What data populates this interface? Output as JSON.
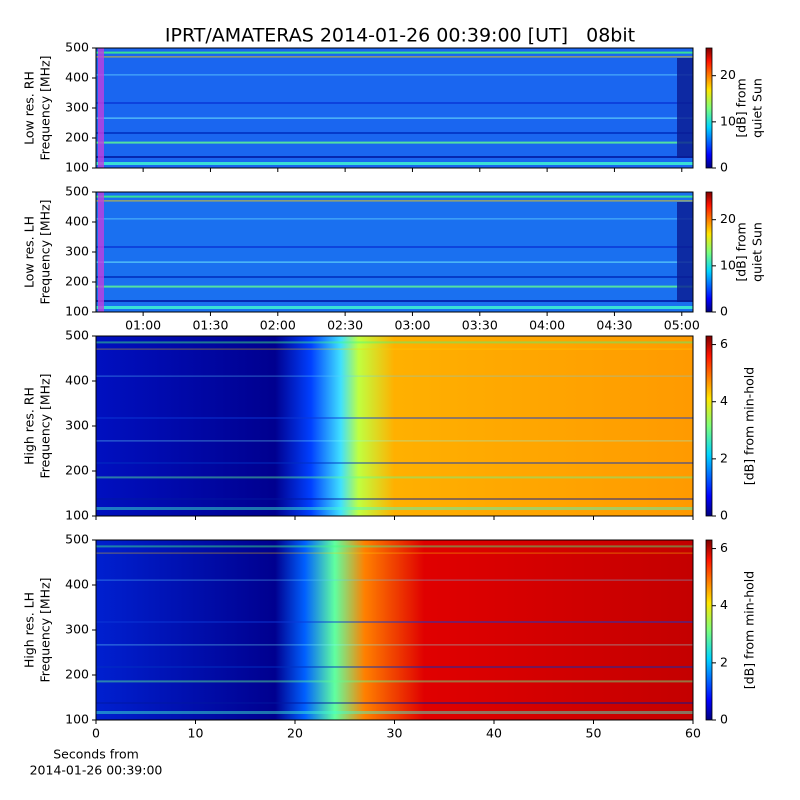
{
  "chart_data": [
    {
      "type": "spectrogram",
      "title": "IPRT/AMATERAS 2014-01-26 00:39:00 [UT]   08bit",
      "ylabel": [
        "Low res. RH",
        "Frequency [MHz]"
      ],
      "xlim": [
        39,
        305
      ],
      "ylim": [
        100,
        500
      ],
      "yticks": [
        100,
        200,
        300,
        400,
        500
      ],
      "clim": [
        0,
        26
      ],
      "cticks": [
        0,
        10,
        20
      ],
      "clabel": [
        "[dB] from",
        "quiet Sun"
      ]
    },
    {
      "type": "spectrogram",
      "ylabel": [
        "Low res. LH",
        "Frequency [MHz]"
      ],
      "xlim": [
        39,
        305
      ],
      "xticks": [
        {
          "value": 60,
          "label": "01:00"
        },
        {
          "value": 90,
          "label": "01:30"
        },
        {
          "value": 120,
          "label": "02:00"
        },
        {
          "value": 150,
          "label": "02:30"
        },
        {
          "value": 180,
          "label": "03:00"
        },
        {
          "value": 210,
          "label": "03:30"
        },
        {
          "value": 240,
          "label": "04:00"
        },
        {
          "value": 270,
          "label": "04:30"
        },
        {
          "value": 300,
          "label": "05:00"
        }
      ],
      "ylim": [
        100,
        500
      ],
      "yticks": [
        100,
        200,
        300,
        400,
        500
      ],
      "clim": [
        0,
        26
      ],
      "cticks": [
        0,
        10,
        20
      ],
      "clabel": [
        "[dB] from",
        "quiet Sun"
      ]
    },
    {
      "type": "spectrogram",
      "ylabel": [
        "High res. RH",
        "Frequency [MHz]"
      ],
      "xlim": [
        0,
        60
      ],
      "ylim": [
        100,
        500
      ],
      "yticks": [
        100,
        200,
        300,
        400,
        500
      ],
      "clim": [
        0,
        6.3
      ],
      "cticks": [
        0,
        2,
        4,
        6
      ],
      "clabel": [
        "[dB] from min-hold"
      ]
    },
    {
      "type": "spectrogram",
      "ylabel": [
        "High res. LH",
        "Frequency [MHz]"
      ],
      "xlabel": [
        "Seconds from",
        "2014-01-26 00:39:00"
      ],
      "xlim": [
        0,
        60
      ],
      "xticks": [
        0,
        10,
        20,
        30,
        40,
        50,
        60
      ],
      "ylim": [
        100,
        500
      ],
      "yticks": [
        100,
        200,
        300,
        400,
        500
      ],
      "clim": [
        0,
        6.3
      ],
      "cticks": [
        0,
        2,
        4,
        6
      ],
      "clabel": [
        "[dB] from min-hold"
      ]
    }
  ]
}
